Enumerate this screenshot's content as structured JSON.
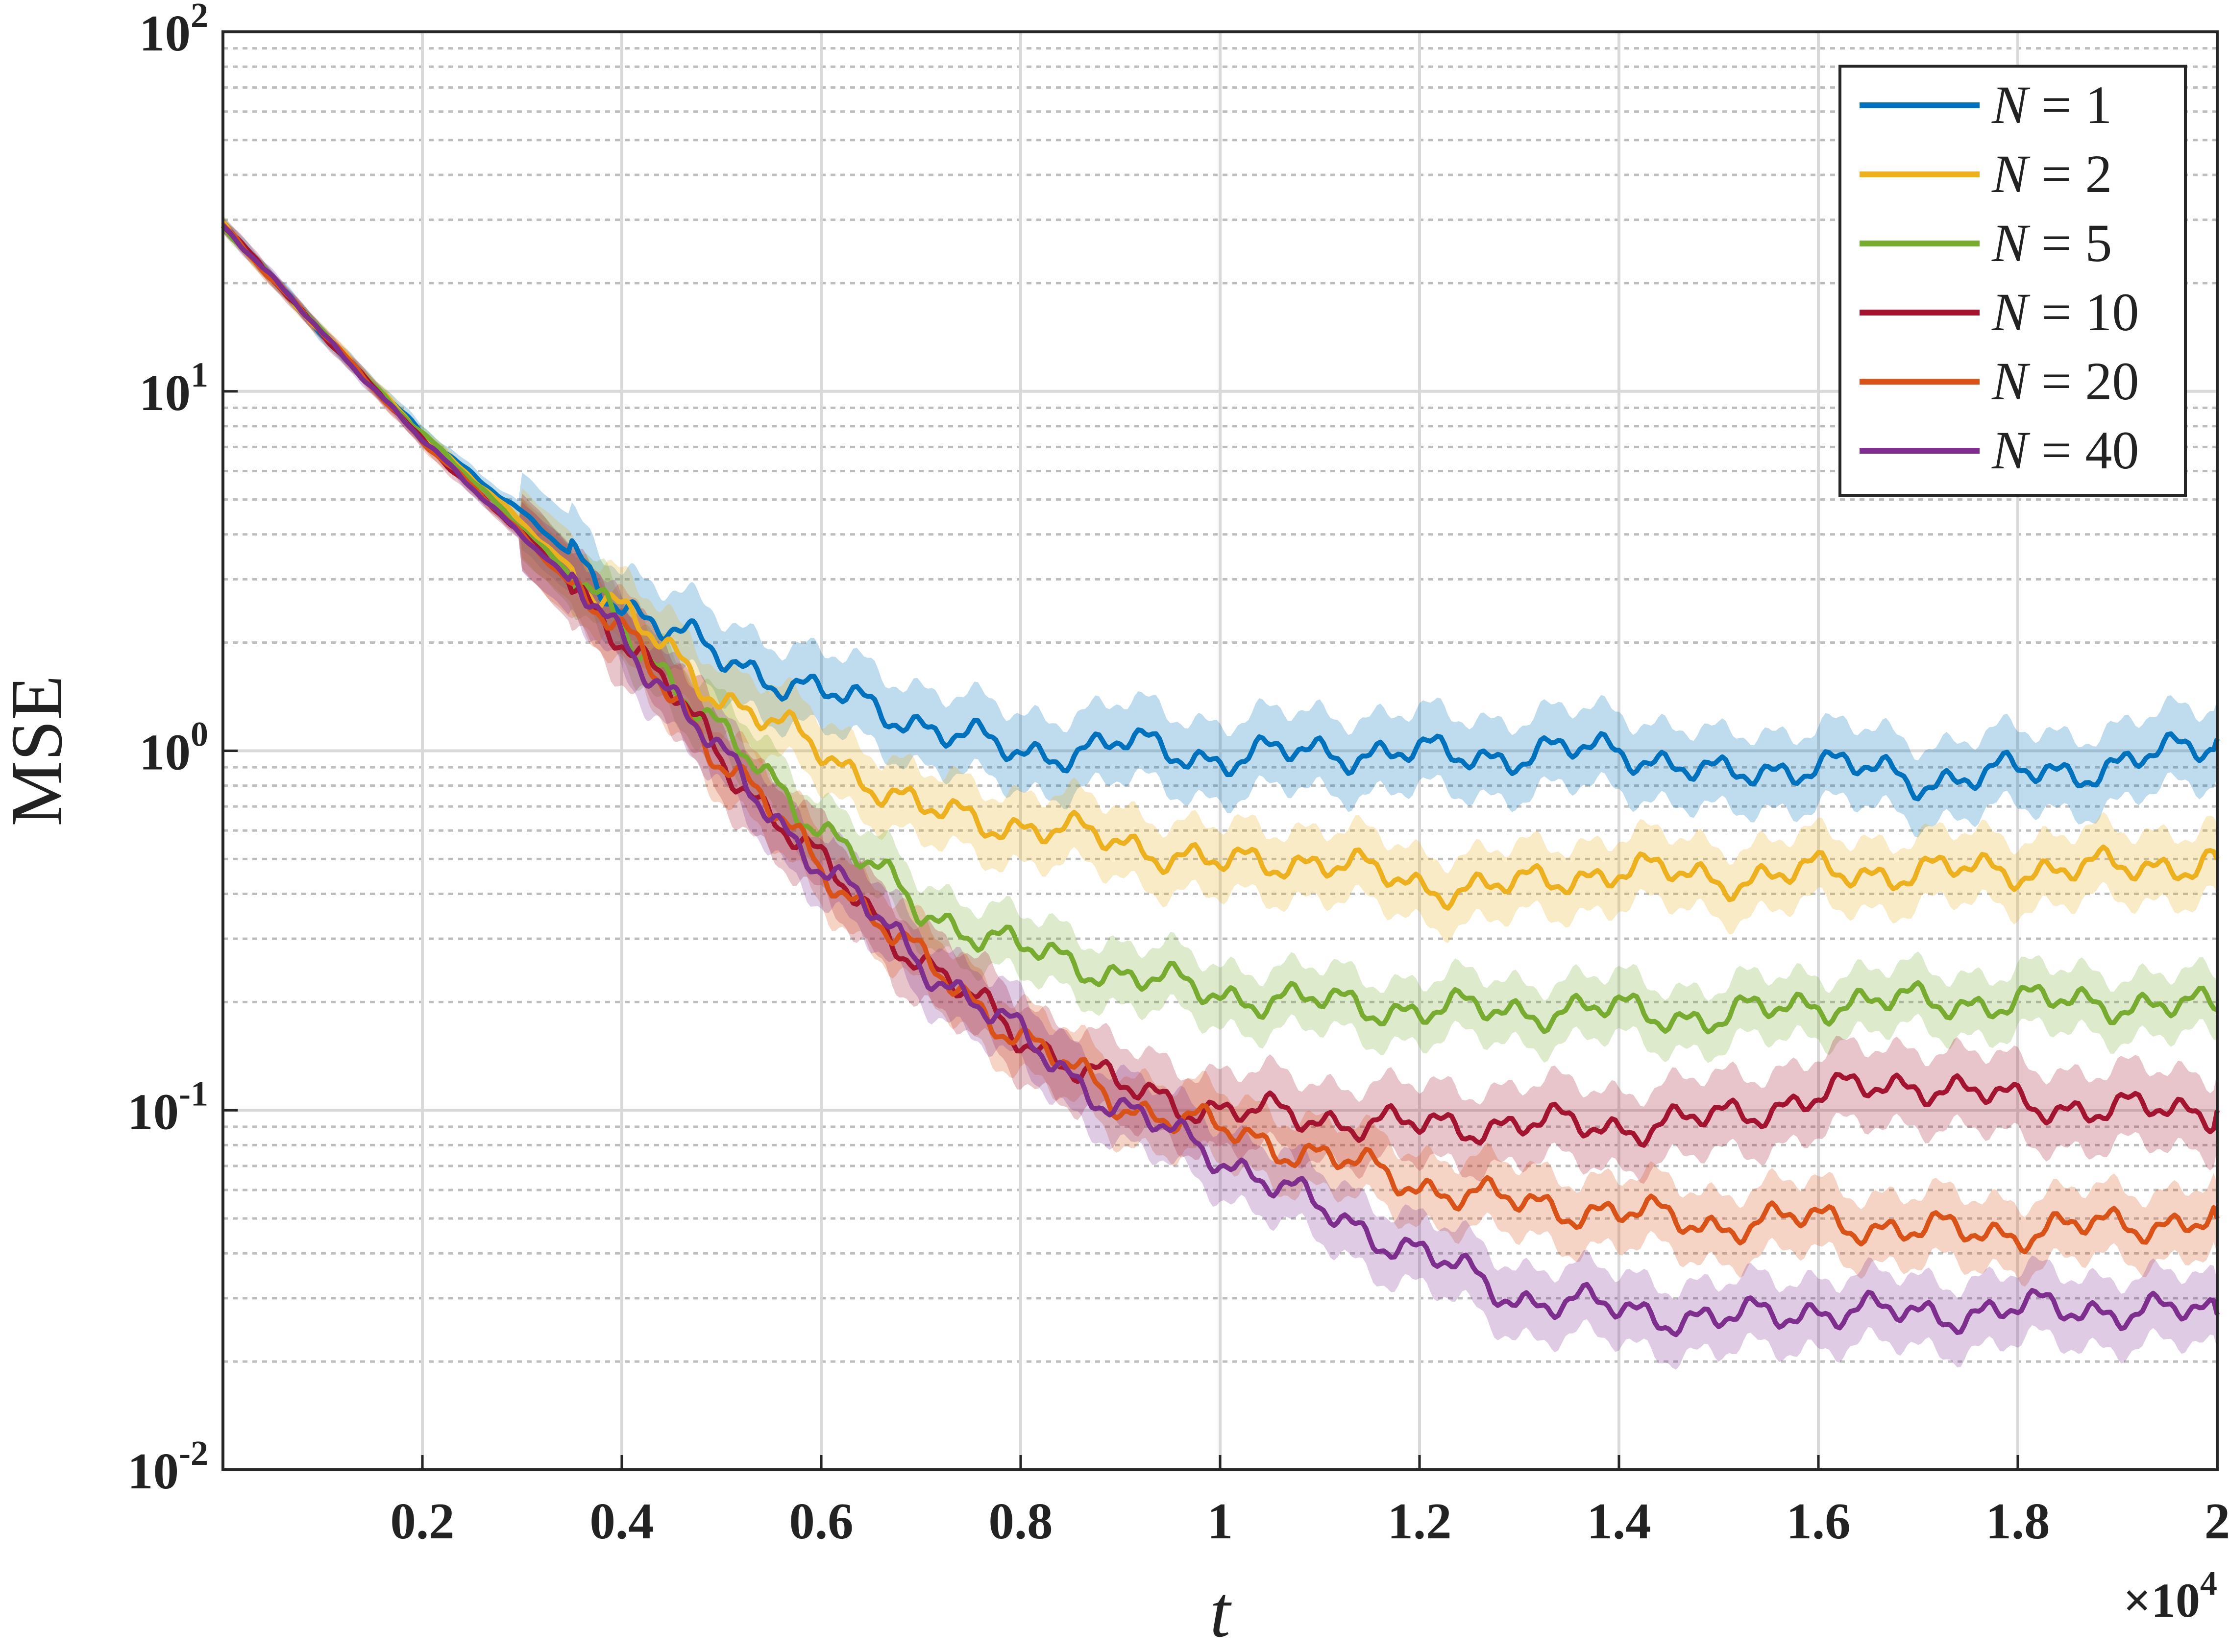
{
  "chart_data": {
    "type": "line",
    "title": "",
    "xlabel": "t",
    "ylabel": "MSE",
    "x_exponent_label": "×10",
    "x_exponent_power": "4",
    "xlim": [
      0,
      20000
    ],
    "ylim": [
      0.01,
      100
    ],
    "yscale": "log",
    "grid": true,
    "legend_placement": "top-right",
    "x_ticks": [
      2000,
      4000,
      6000,
      8000,
      10000,
      12000,
      14000,
      16000,
      18000,
      20000
    ],
    "x_tick_labels": [
      "0.2",
      "0.4",
      "0.6",
      "0.8",
      "1",
      "1.2",
      "1.4",
      "1.6",
      "1.8",
      "2"
    ],
    "y_ticks": [
      {
        "value": 0.01,
        "base": "10",
        "exp": "-2"
      },
      {
        "value": 0.1,
        "base": "10",
        "exp": "-1"
      },
      {
        "value": 1,
        "base": "10",
        "exp": "0"
      },
      {
        "value": 10,
        "base": "10",
        "exp": "1"
      },
      {
        "value": 100,
        "base": "10",
        "exp": "2"
      }
    ],
    "x": [
      0,
      1000,
      2000,
      3000,
      4000,
      4500,
      5000,
      6000,
      7000,
      8000,
      9000,
      10000,
      11000,
      12000,
      13000,
      14000,
      15000,
      16000,
      17000,
      18000,
      19000,
      20000
    ],
    "series": [
      {
        "name": "N = 1",
        "label_var": "N",
        "label_eq": "= 1",
        "color": "#0072BD",
        "values": [
          29,
          14.5,
          7.6,
          4.6,
          2.6,
          2.15,
          1.8,
          1.45,
          1.2,
          0.97,
          1.05,
          0.95,
          1.0,
          0.98,
          0.97,
          1.02,
          0.84,
          0.93,
          0.83,
          0.87,
          0.9,
          1.08
        ],
        "band": 1.28
      },
      {
        "name": "N = 2",
        "label_var": "N",
        "label_eq": "= 2",
        "color": "#EDB120",
        "values": [
          29,
          14.5,
          7.6,
          4.3,
          2.4,
          1.85,
          1.42,
          1.0,
          0.68,
          0.62,
          0.56,
          0.48,
          0.5,
          0.42,
          0.42,
          0.47,
          0.44,
          0.46,
          0.46,
          0.47,
          0.47,
          0.5
        ],
        "band": 1.25
      },
      {
        "name": "N = 5",
        "label_var": "N",
        "label_eq": "= 5",
        "color": "#77AC30",
        "values": [
          29,
          14.5,
          7.6,
          4.2,
          2.2,
          1.6,
          1.1,
          0.62,
          0.36,
          0.28,
          0.24,
          0.21,
          0.2,
          0.19,
          0.19,
          0.19,
          0.18,
          0.2,
          0.2,
          0.2,
          0.2,
          0.19
        ],
        "band": 1.22
      },
      {
        "name": "N = 10",
        "label_var": "N",
        "label_eq": "= 10",
        "color": "#A2142F",
        "values": [
          29,
          14.5,
          7.3,
          4.0,
          2.1,
          1.45,
          0.95,
          0.48,
          0.26,
          0.16,
          0.115,
          0.1,
          0.095,
          0.09,
          0.092,
          0.09,
          0.095,
          0.11,
          0.12,
          0.105,
          0.1,
          0.1
        ],
        "band": 1.28
      },
      {
        "name": "N = 20",
        "label_var": "N",
        "label_eq": "= 20",
        "color": "#D95319",
        "values": [
          29,
          14.5,
          7.3,
          4.0,
          2.1,
          1.45,
          0.95,
          0.48,
          0.26,
          0.16,
          0.105,
          0.088,
          0.075,
          0.062,
          0.055,
          0.052,
          0.048,
          0.05,
          0.046,
          0.046,
          0.048,
          0.05
        ],
        "band": 1.25
      },
      {
        "name": "N = 40",
        "label_var": "N",
        "label_eq": "= 40",
        "color": "#7E2F8E",
        "values": [
          29,
          14.5,
          7.3,
          4.0,
          2.1,
          1.45,
          0.95,
          0.48,
          0.26,
          0.16,
          0.1,
          0.075,
          0.053,
          0.04,
          0.03,
          0.028,
          0.026,
          0.028,
          0.027,
          0.028,
          0.028,
          0.027
        ],
        "band": 1.25
      }
    ]
  }
}
